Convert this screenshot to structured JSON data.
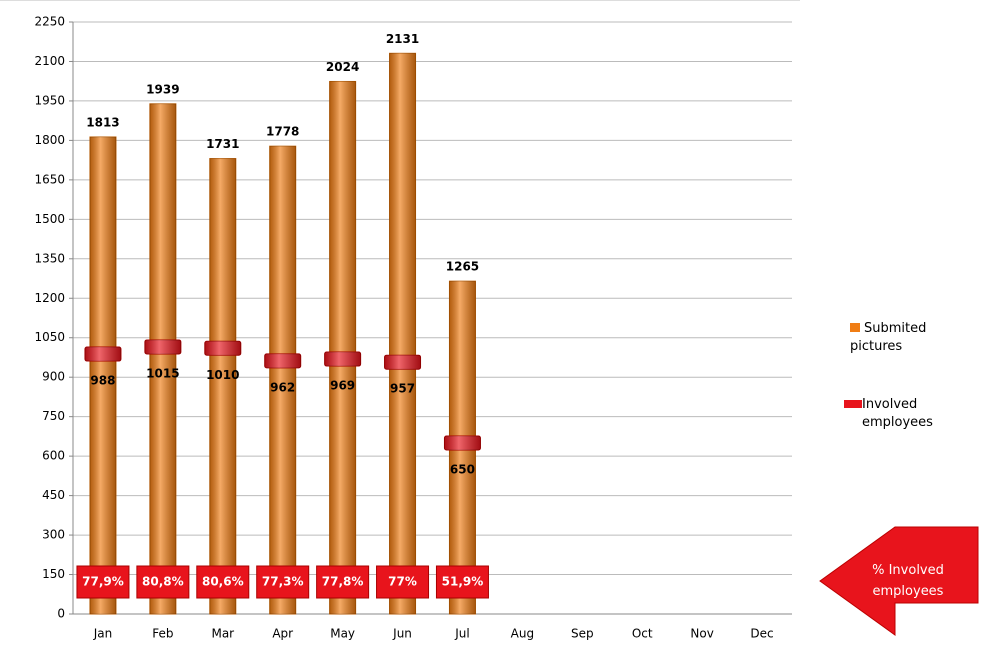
{
  "chart_data": {
    "type": "bar",
    "categories": [
      "Jan",
      "Feb",
      "Mar",
      "Apr",
      "May",
      "Jun",
      "Jul",
      "Aug",
      "Sep",
      "Oct",
      "Nov",
      "Dec"
    ],
    "series": [
      {
        "name": "Submited pictures",
        "color": "#f07d14",
        "values": [
          1813,
          1939,
          1731,
          1778,
          2024,
          2131,
          1265,
          null,
          null,
          null,
          null,
          null
        ]
      },
      {
        "name": "Involved employees",
        "color": "#e8141c",
        "values": [
          988,
          1015,
          1010,
          962,
          969,
          957,
          650,
          null,
          null,
          null,
          null,
          null
        ]
      },
      {
        "name": "% Involved employees",
        "color": "#e8141c",
        "values": [
          77.9,
          80.8,
          80.6,
          77.3,
          77.8,
          77,
          51.9,
          null,
          null,
          null,
          null,
          null
        ],
        "value_labels": [
          "77,9%",
          "80,8%",
          "80,6%",
          "77,3%",
          "77,8%",
          "77%",
          "51,9%",
          null,
          null,
          null,
          null,
          null
        ]
      }
    ],
    "ylim": [
      0,
      2250
    ],
    "yticks": [
      0,
      150,
      300,
      450,
      600,
      750,
      900,
      1050,
      1200,
      1350,
      1500,
      1650,
      1800,
      1950,
      2100,
      2250
    ],
    "grid": true
  }
}
